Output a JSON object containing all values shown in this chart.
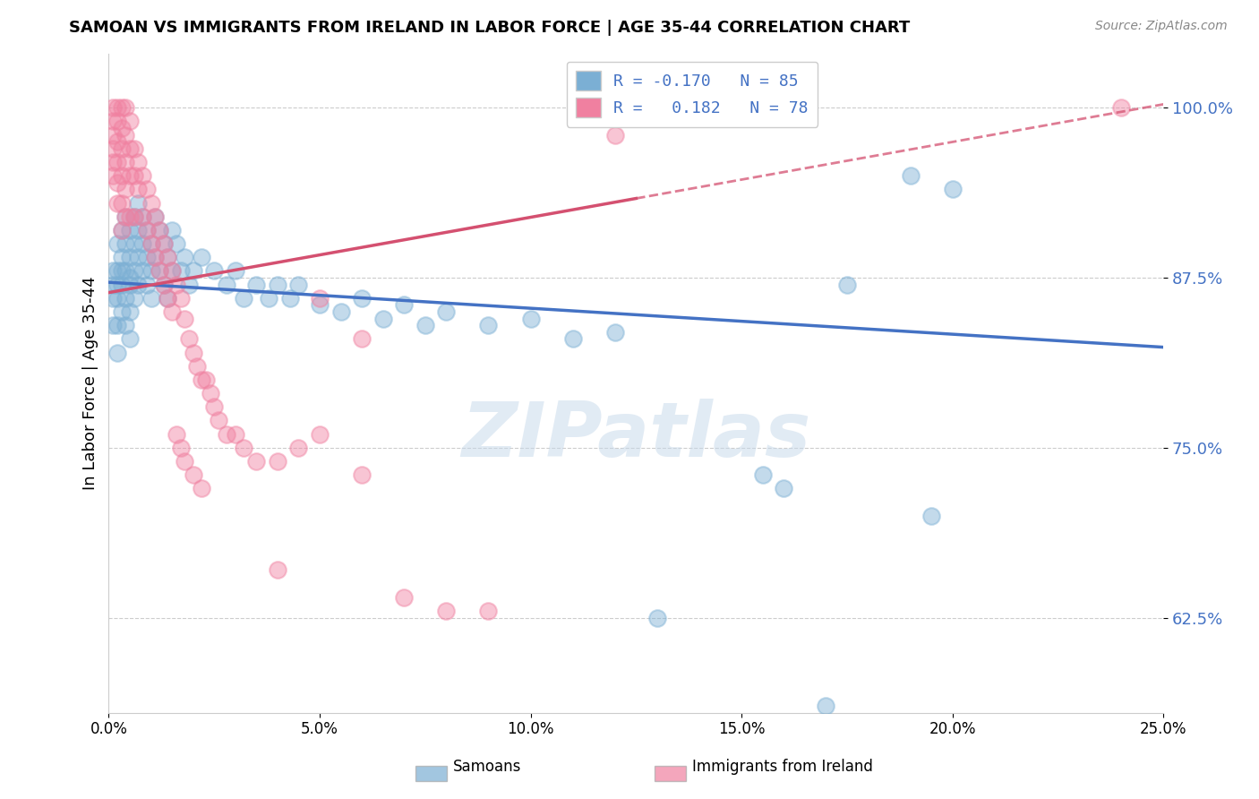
{
  "title": "SAMOAN VS IMMIGRANTS FROM IRELAND IN LABOR FORCE | AGE 35-44 CORRELATION CHART",
  "source": "Source: ZipAtlas.com",
  "ylabel": "In Labor Force | Age 35-44",
  "xlim": [
    0.0,
    0.25
  ],
  "ylim": [
    0.555,
    1.04
  ],
  "xticks": [
    0.0,
    0.05,
    0.1,
    0.15,
    0.2,
    0.25
  ],
  "yticks": [
    0.625,
    0.75,
    0.875,
    1.0
  ],
  "ytick_labels": [
    "62.5%",
    "75.0%",
    "87.5%",
    "100.0%"
  ],
  "xtick_labels": [
    "0.0%",
    "5.0%",
    "10.0%",
    "15.0%",
    "20.0%",
    "25.0%"
  ],
  "blue_color": "#7bafd4",
  "pink_color": "#f080a0",
  "blue_line_color": "#4472c4",
  "pink_line_color": "#d45070",
  "legend_text_color": "#4472c4",
  "watermark": "ZIPatlas",
  "blue_R": -0.17,
  "pink_R": 0.182,
  "blue_scatter": [
    [
      0.001,
      0.88
    ],
    [
      0.001,
      0.86
    ],
    [
      0.001,
      0.84
    ],
    [
      0.001,
      0.87
    ],
    [
      0.002,
      0.9
    ],
    [
      0.002,
      0.88
    ],
    [
      0.002,
      0.86
    ],
    [
      0.002,
      0.84
    ],
    [
      0.002,
      0.82
    ],
    [
      0.002,
      0.87
    ],
    [
      0.003,
      0.91
    ],
    [
      0.003,
      0.89
    ],
    [
      0.003,
      0.87
    ],
    [
      0.003,
      0.85
    ],
    [
      0.003,
      0.88
    ],
    [
      0.004,
      0.92
    ],
    [
      0.004,
      0.9
    ],
    [
      0.004,
      0.88
    ],
    [
      0.004,
      0.86
    ],
    [
      0.004,
      0.84
    ],
    [
      0.005,
      0.91
    ],
    [
      0.005,
      0.89
    ],
    [
      0.005,
      0.87
    ],
    [
      0.005,
      0.85
    ],
    [
      0.005,
      0.83
    ],
    [
      0.005,
      0.875
    ],
    [
      0.006,
      0.92
    ],
    [
      0.006,
      0.9
    ],
    [
      0.006,
      0.88
    ],
    [
      0.006,
      0.86
    ],
    [
      0.007,
      0.93
    ],
    [
      0.007,
      0.91
    ],
    [
      0.007,
      0.89
    ],
    [
      0.007,
      0.87
    ],
    [
      0.008,
      0.92
    ],
    [
      0.008,
      0.9
    ],
    [
      0.008,
      0.88
    ],
    [
      0.009,
      0.91
    ],
    [
      0.009,
      0.89
    ],
    [
      0.009,
      0.87
    ],
    [
      0.01,
      0.9
    ],
    [
      0.01,
      0.88
    ],
    [
      0.01,
      0.86
    ],
    [
      0.011,
      0.92
    ],
    [
      0.011,
      0.89
    ],
    [
      0.012,
      0.91
    ],
    [
      0.012,
      0.88
    ],
    [
      0.013,
      0.9
    ],
    [
      0.013,
      0.87
    ],
    [
      0.014,
      0.89
    ],
    [
      0.014,
      0.86
    ],
    [
      0.015,
      0.91
    ],
    [
      0.015,
      0.88
    ],
    [
      0.016,
      0.9
    ],
    [
      0.017,
      0.88
    ],
    [
      0.018,
      0.89
    ],
    [
      0.019,
      0.87
    ],
    [
      0.02,
      0.88
    ],
    [
      0.022,
      0.89
    ],
    [
      0.025,
      0.88
    ],
    [
      0.028,
      0.87
    ],
    [
      0.03,
      0.88
    ],
    [
      0.032,
      0.86
    ],
    [
      0.035,
      0.87
    ],
    [
      0.038,
      0.86
    ],
    [
      0.04,
      0.87
    ],
    [
      0.043,
      0.86
    ],
    [
      0.045,
      0.87
    ],
    [
      0.05,
      0.855
    ],
    [
      0.055,
      0.85
    ],
    [
      0.06,
      0.86
    ],
    [
      0.065,
      0.845
    ],
    [
      0.07,
      0.855
    ],
    [
      0.075,
      0.84
    ],
    [
      0.08,
      0.85
    ],
    [
      0.09,
      0.84
    ],
    [
      0.1,
      0.845
    ],
    [
      0.11,
      0.83
    ],
    [
      0.12,
      0.835
    ],
    [
      0.13,
      0.625
    ],
    [
      0.155,
      0.73
    ],
    [
      0.16,
      0.72
    ],
    [
      0.175,
      0.87
    ],
    [
      0.19,
      0.95
    ],
    [
      0.2,
      0.94
    ],
    [
      0.195,
      0.7
    ],
    [
      0.17,
      0.56
    ]
  ],
  "pink_scatter": [
    [
      0.001,
      1.0
    ],
    [
      0.001,
      0.99
    ],
    [
      0.001,
      0.98
    ],
    [
      0.001,
      0.97
    ],
    [
      0.001,
      0.96
    ],
    [
      0.001,
      0.95
    ],
    [
      0.002,
      1.0
    ],
    [
      0.002,
      0.99
    ],
    [
      0.002,
      0.975
    ],
    [
      0.002,
      0.96
    ],
    [
      0.002,
      0.945
    ],
    [
      0.002,
      0.93
    ],
    [
      0.003,
      1.0
    ],
    [
      0.003,
      0.985
    ],
    [
      0.003,
      0.97
    ],
    [
      0.003,
      0.95
    ],
    [
      0.003,
      0.93
    ],
    [
      0.003,
      0.91
    ],
    [
      0.004,
      1.0
    ],
    [
      0.004,
      0.98
    ],
    [
      0.004,
      0.96
    ],
    [
      0.004,
      0.94
    ],
    [
      0.004,
      0.92
    ],
    [
      0.005,
      0.99
    ],
    [
      0.005,
      0.97
    ],
    [
      0.005,
      0.95
    ],
    [
      0.005,
      0.92
    ],
    [
      0.006,
      0.97
    ],
    [
      0.006,
      0.95
    ],
    [
      0.006,
      0.92
    ],
    [
      0.007,
      0.96
    ],
    [
      0.007,
      0.94
    ],
    [
      0.008,
      0.95
    ],
    [
      0.008,
      0.92
    ],
    [
      0.009,
      0.94
    ],
    [
      0.009,
      0.91
    ],
    [
      0.01,
      0.93
    ],
    [
      0.01,
      0.9
    ],
    [
      0.011,
      0.92
    ],
    [
      0.011,
      0.89
    ],
    [
      0.012,
      0.91
    ],
    [
      0.012,
      0.88
    ],
    [
      0.013,
      0.9
    ],
    [
      0.013,
      0.87
    ],
    [
      0.014,
      0.89
    ],
    [
      0.014,
      0.86
    ],
    [
      0.015,
      0.88
    ],
    [
      0.015,
      0.85
    ],
    [
      0.016,
      0.87
    ],
    [
      0.016,
      0.76
    ],
    [
      0.017,
      0.86
    ],
    [
      0.017,
      0.75
    ],
    [
      0.018,
      0.845
    ],
    [
      0.018,
      0.74
    ],
    [
      0.019,
      0.83
    ],
    [
      0.02,
      0.82
    ],
    [
      0.02,
      0.73
    ],
    [
      0.021,
      0.81
    ],
    [
      0.022,
      0.8
    ],
    [
      0.022,
      0.72
    ],
    [
      0.023,
      0.8
    ],
    [
      0.024,
      0.79
    ],
    [
      0.025,
      0.78
    ],
    [
      0.026,
      0.77
    ],
    [
      0.028,
      0.76
    ],
    [
      0.03,
      0.76
    ],
    [
      0.032,
      0.75
    ],
    [
      0.035,
      0.74
    ],
    [
      0.04,
      0.74
    ],
    [
      0.04,
      0.66
    ],
    [
      0.045,
      0.75
    ],
    [
      0.05,
      0.76
    ],
    [
      0.05,
      0.86
    ],
    [
      0.06,
      0.73
    ],
    [
      0.06,
      0.83
    ],
    [
      0.07,
      0.64
    ],
    [
      0.08,
      0.63
    ],
    [
      0.09,
      0.63
    ],
    [
      0.12,
      0.98
    ],
    [
      0.24,
      1.0
    ]
  ]
}
